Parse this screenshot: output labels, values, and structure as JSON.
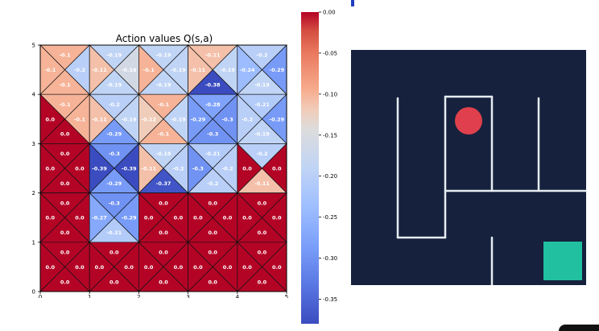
{
  "chart_data": {
    "type": "heatmap",
    "title": "Action values Q(s,a)",
    "xlim": [
      0,
      5
    ],
    "ylim": [
      0,
      5
    ],
    "x_ticks": [
      "0",
      "1",
      "2",
      "3",
      "4",
      "5"
    ],
    "y_ticks": [
      "0",
      "1",
      "2",
      "3",
      "4",
      "5"
    ],
    "cells": [
      [
        {
          "up": -0.1,
          "left": -0.1,
          "right": -0.2,
          "down": -0.1
        },
        {
          "up": -0.19,
          "left": -0.11,
          "right": -0.16,
          "down": -0.19
        },
        {
          "up": -0.19,
          "left": -0.1,
          "right": -0.19,
          "down": -0.19
        },
        {
          "up": -0.11,
          "left": -0.11,
          "right": -0.19,
          "down": -0.38
        },
        {
          "up": -0.2,
          "left": -0.24,
          "right": -0.29,
          "down": -0.19
        }
      ],
      [
        {
          "up": -0.1,
          "left": 0.0,
          "right": -0.1,
          "down": 0.0
        },
        {
          "up": -0.2,
          "left": -0.11,
          "right": -0.19,
          "down": -0.29
        },
        {
          "up": -0.1,
          "left": -0.12,
          "right": -0.19,
          "down": -0.1
        },
        {
          "up": -0.28,
          "left": -0.29,
          "right": -0.3,
          "down": -0.3
        },
        {
          "up": -0.21,
          "left": -0.2,
          "right": -0.29,
          "down": -0.19
        }
      ],
      [
        {
          "up": 0.0,
          "left": 0.0,
          "right": 0.0,
          "down": 0.0
        },
        {
          "up": -0.3,
          "left": -0.39,
          "right": -0.39,
          "down": -0.29
        },
        {
          "up": -0.19,
          "left": -0.11,
          "right": -0.2,
          "down": -0.37
        },
        {
          "up": -0.21,
          "left": -0.3,
          "right": -0.2,
          "down": -0.2
        },
        {
          "up": -0.2,
          "left": 0.0,
          "right": 0.0,
          "down": -0.11
        }
      ],
      [
        {
          "up": 0.0,
          "left": 0.0,
          "right": 0.0,
          "down": 0.0
        },
        {
          "up": -0.3,
          "left": -0.27,
          "right": -0.29,
          "down": -0.21
        },
        {
          "up": 0.0,
          "left": 0.0,
          "right": 0.0,
          "down": 0.0
        },
        {
          "up": 0.0,
          "left": 0.0,
          "right": 0.0,
          "down": 0.0
        },
        {
          "up": 0.0,
          "left": 0.0,
          "right": 0.0,
          "down": 0.0
        }
      ],
      [
        {
          "up": 0.0,
          "left": 0.0,
          "right": 0.0,
          "down": 0.0
        },
        {
          "up": 0.0,
          "left": 0.0,
          "right": 0.0,
          "down": 0.0
        },
        {
          "up": 0.0,
          "left": 0.0,
          "right": 0.0,
          "down": 0.0
        },
        {
          "up": 0.0,
          "left": 0.0,
          "right": 0.0,
          "down": 0.0
        },
        {
          "up": 0.0,
          "left": 0.0,
          "right": 0.0,
          "down": 0.0
        }
      ]
    ],
    "colorbar": {
      "min": -0.38,
      "max": 0.0,
      "ticks": [
        "0.00",
        "-0.05",
        "-0.10",
        "-0.15",
        "-0.20",
        "-0.25",
        "-0.30",
        "-0.35"
      ],
      "tick_values": [
        0.0,
        -0.05,
        -0.1,
        -0.15,
        -0.2,
        -0.25,
        -0.3,
        -0.35
      ]
    }
  },
  "maze": {
    "background": "#16213d",
    "wall_color": "#e6ecf2",
    "agent_color": "#e0404d",
    "goal_color": "#21c0a0"
  },
  "colors": {
    "cmap_low": "#3b4cc0",
    "cmap_mid": "#dddddd",
    "cmap_high": "#b40426"
  }
}
